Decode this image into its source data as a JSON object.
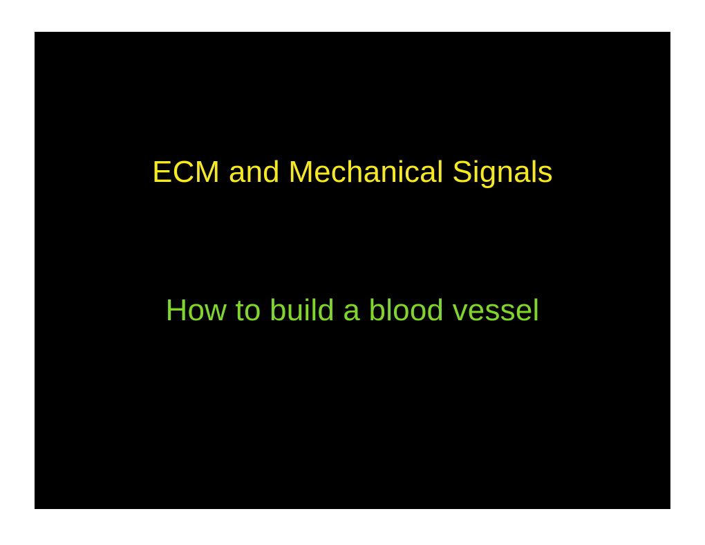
{
  "slide": {
    "background_color": "#000000",
    "page_background": "#ffffff",
    "title": {
      "text": "ECM and Mechanical Signals",
      "color": "#f8eb14",
      "font_size": 44,
      "font_weight": 400
    },
    "subtitle": {
      "text": "How to build a blood vessel",
      "color": "#7fd821",
      "font_size": 44,
      "font_weight": 400
    }
  }
}
